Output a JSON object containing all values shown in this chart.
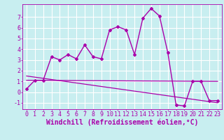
{
  "xlabel": "Windchill (Refroidissement éolien,°C)",
  "background_color": "#c8eef0",
  "grid_color": "#ffffff",
  "line_color": "#aa00aa",
  "xlim": [
    -0.5,
    23.5
  ],
  "ylim": [
    -1.6,
    8.2
  ],
  "yticks": [
    -1,
    0,
    1,
    2,
    3,
    4,
    5,
    6,
    7
  ],
  "xticks": [
    0,
    1,
    2,
    3,
    4,
    5,
    6,
    7,
    8,
    9,
    10,
    11,
    12,
    13,
    14,
    15,
    16,
    17,
    18,
    19,
    20,
    21,
    22,
    23
  ],
  "series1_x": [
    0,
    1,
    2,
    3,
    4,
    5,
    6,
    7,
    8,
    9,
    10,
    11,
    12,
    13,
    14,
    15,
    16,
    17,
    18,
    19,
    20,
    21,
    22,
    23
  ],
  "series1_y": [
    0.3,
    1.1,
    1.1,
    3.3,
    3.0,
    3.5,
    3.1,
    4.4,
    3.3,
    3.1,
    5.8,
    6.1,
    5.8,
    3.5,
    6.9,
    7.8,
    7.1,
    3.7,
    -1.2,
    -1.3,
    1.0,
    1.0,
    -0.8,
    -0.8
  ],
  "series2_x": [
    0,
    23
  ],
  "series2_y": [
    1.1,
    1.0
  ],
  "series3_x": [
    0,
    23
  ],
  "series3_y": [
    1.5,
    -1.0
  ],
  "tick_fontsize": 6,
  "xlabel_fontsize": 7
}
